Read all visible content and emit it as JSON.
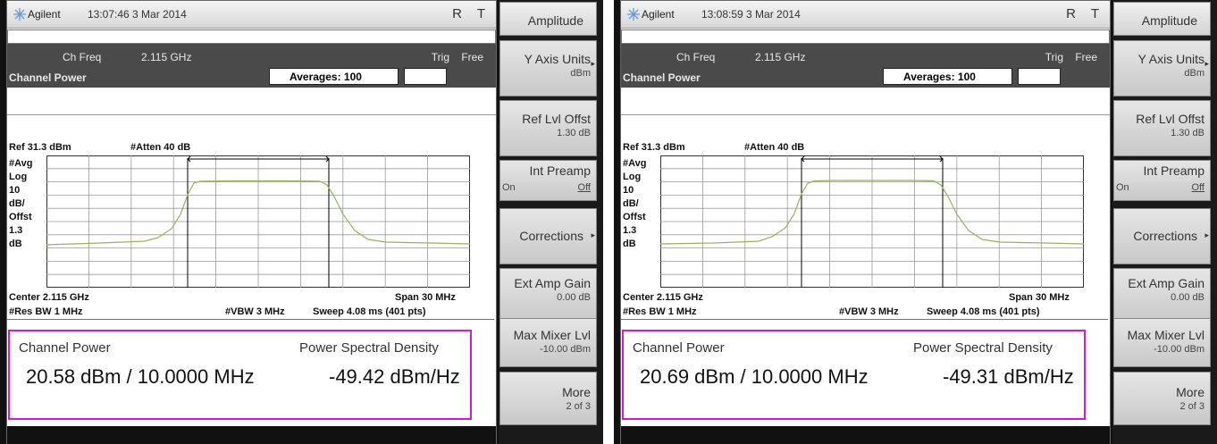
{
  "screens": [
    {
      "brand": "Agilent",
      "timestamp": "13:07:46  3 Mar 2014",
      "indicator_r": "R",
      "indicator_t": "T",
      "ch_freq_label": "Ch Freq",
      "ch_freq_value": "2.115 GHz",
      "trig_label": "Trig",
      "trig_value": "Free",
      "mode": "Channel Power",
      "averages": "Averages: 100",
      "ref_level": "Ref 31.3 dBm",
      "atten": "#Atten 40 dB",
      "scale_labels": [
        "#Avg",
        "Log",
        "10",
        "dB/",
        "Offst",
        "1.3",
        "dB"
      ],
      "center": "Center 2.115 GHz",
      "span": "Span 30 MHz",
      "res_bw": "#Res BW 1 MHz",
      "vbw": "#VBW 3 MHz",
      "sweep": "Sweep 4.08 ms (401 pts)",
      "channel_power_label": "Channel Power",
      "psd_label": "Power Spectral Density",
      "channel_power_value": "20.58 dBm  / 10.0000 MHz",
      "psd_value": "-49.42 dBm/Hz",
      "softkeys": {
        "title": "Amplitude",
        "y_axis_units": "Y Axis Units",
        "y_axis_units_value": "dBm",
        "ref_lvl_offst": "Ref Lvl Offst",
        "ref_lvl_offst_value": "1.30 dB",
        "int_preamp": "Int Preamp",
        "int_preamp_on": "On",
        "int_preamp_off": "Off",
        "corrections": "Corrections",
        "ext_amp_gain": "Ext Amp Gain",
        "ext_amp_gain_value": "0.00 dB",
        "max_mixer_lvl": "Max Mixer Lvl",
        "max_mixer_lvl_value": "-10.00 dBm",
        "more": "More",
        "more_value": "2 of 3"
      }
    },
    {
      "brand": "Agilent",
      "timestamp": "13:08:59  3 Mar 2014",
      "indicator_r": "R",
      "indicator_t": "T",
      "ch_freq_label": "Ch Freq",
      "ch_freq_value": "2.115 GHz",
      "trig_label": "Trig",
      "trig_value": "Free",
      "mode": "Channel Power",
      "averages": "Averages: 100",
      "ref_level": "Ref 31.3 dBm",
      "atten": "#Atten 40 dB",
      "scale_labels": [
        "#Avg",
        "Log",
        "10",
        "dB/",
        "Offst",
        "1.3",
        "dB"
      ],
      "center": "Center 2.115 GHz",
      "span": "Span 30 MHz",
      "res_bw": "#Res BW 1 MHz",
      "vbw": "#VBW 3 MHz",
      "sweep": "Sweep 4.08 ms (401 pts)",
      "channel_power_label": "Channel Power",
      "psd_label": "Power Spectral Density",
      "channel_power_value": "20.69 dBm  / 10.0000 MHz",
      "psd_value": "-49.31 dBm/Hz",
      "softkeys": {
        "title": "Amplitude",
        "y_axis_units": "Y Axis Units",
        "y_axis_units_value": "dBm",
        "ref_lvl_offst": "Ref Lvl Offst",
        "ref_lvl_offst_value": "1.30 dB",
        "int_preamp": "Int Preamp",
        "int_preamp_on": "On",
        "int_preamp_off": "Off",
        "corrections": "Corrections",
        "ext_amp_gain": "Ext Amp Gain",
        "ext_amp_gain_value": "0.00 dB",
        "max_mixer_lvl": "Max Mixer Lvl",
        "max_mixer_lvl_value": "-10.00 dBm",
        "more": "More",
        "more_value": "2 of 3"
      }
    }
  ],
  "colors": {
    "trace": "#9ab060",
    "results_border": "#d01cd0",
    "title_bar": "#4a4a4a"
  }
}
